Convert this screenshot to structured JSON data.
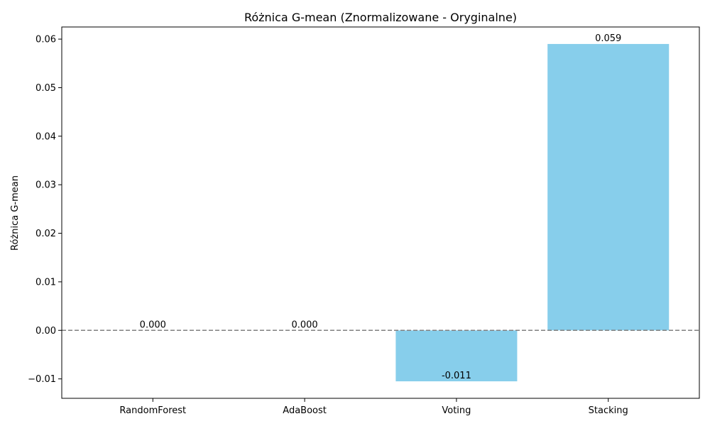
{
  "chart_data": {
    "type": "bar",
    "title": "Różnica G-mean (Znormalizowane - Oryginalne)",
    "xlabel": "",
    "ylabel": "Różnica G-mean",
    "categories": [
      "RandomForest",
      "AdaBoost",
      "Voting",
      "Stacking"
    ],
    "values": [
      0.0,
      0.0,
      -0.0105,
      0.059
    ],
    "value_labels": [
      "0.000",
      "0.000",
      "-0.011",
      "0.059"
    ],
    "ylim": [
      -0.014,
      0.0625
    ],
    "yticks": [
      -0.01,
      0.0,
      0.01,
      0.02,
      0.03,
      0.04,
      0.05,
      0.06
    ],
    "ytick_labels": [
      "−0.01",
      "0.00",
      "0.01",
      "0.02",
      "0.03",
      "0.04",
      "0.05",
      "0.06"
    ],
    "reference_line": 0,
    "grid": false,
    "colors": {
      "bar": "#87ceeb",
      "zero_line": "#808080",
      "axis": "#000000"
    }
  }
}
